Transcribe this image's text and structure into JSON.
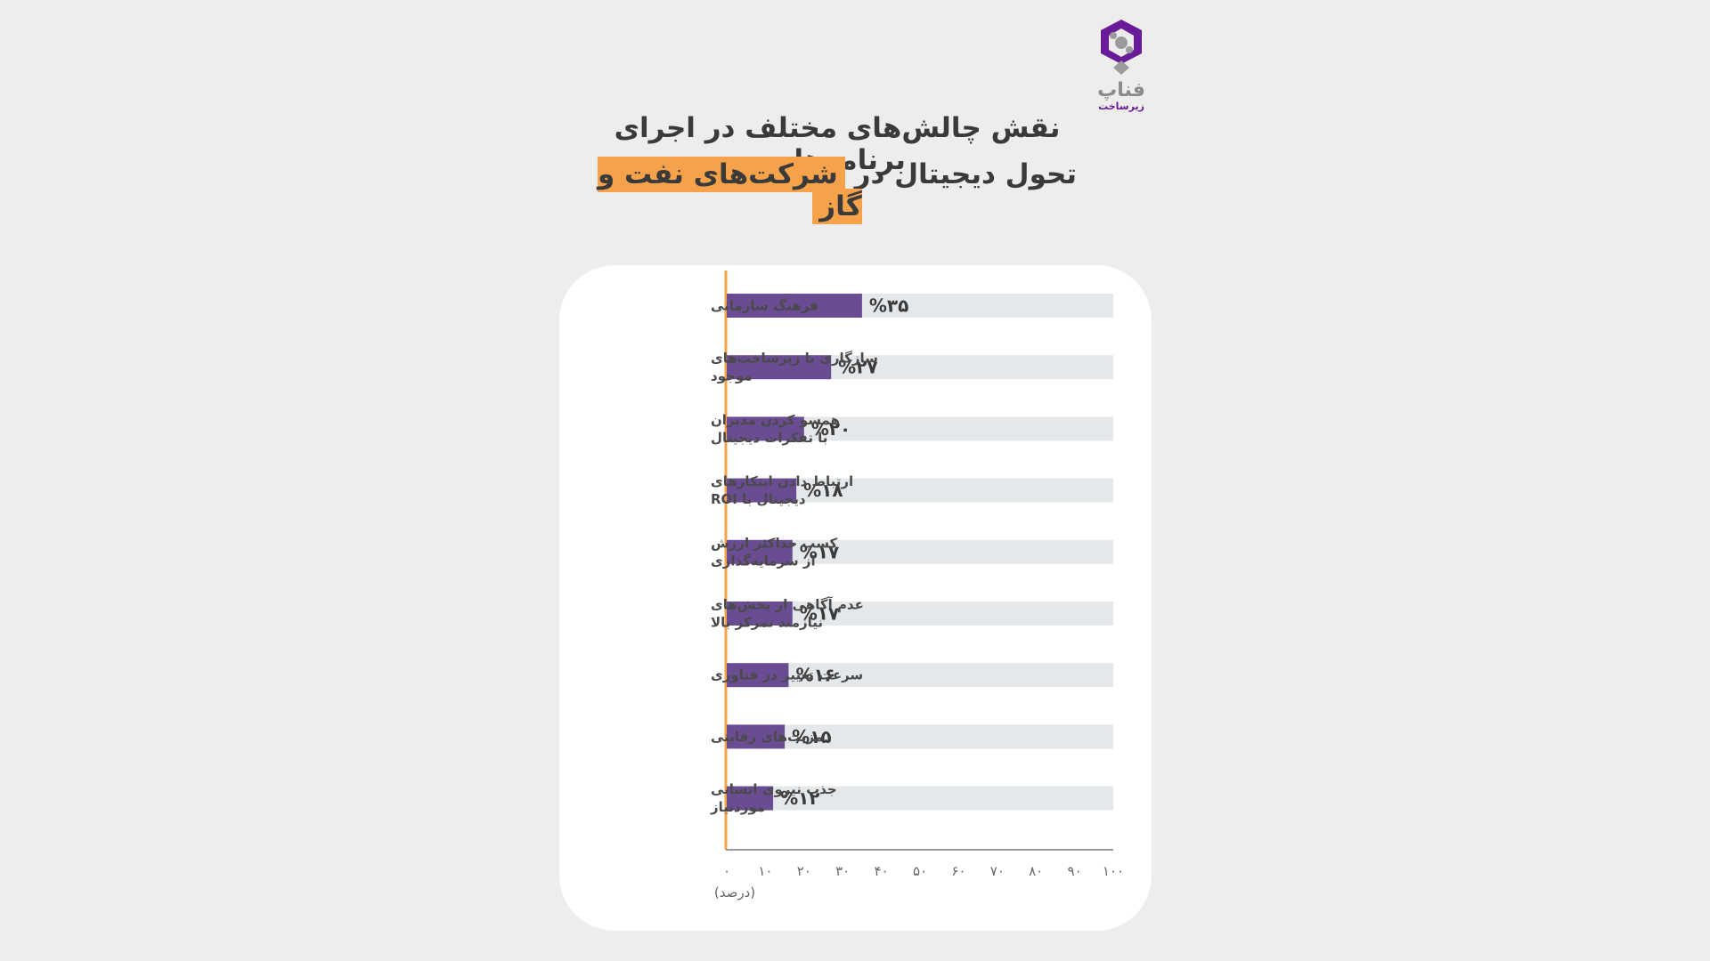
{
  "logo": {
    "main_text": "فناپ",
    "sub_text": "زیرساخت"
  },
  "title": {
    "line1": "نقش چالش‌های مختلف در اجرای برنامه‌های",
    "line2_before": "تحول دیجیتال در",
    "line2_highlight": "شرکت‌های نفت و گاز"
  },
  "colors": {
    "bar": "#6a4c93",
    "track": "#e5e8ea",
    "axis": "#f5a24b",
    "highlight": "#f5a24b",
    "card": "#ffffff",
    "background": "#ededec"
  },
  "chart_data": {
    "type": "bar",
    "orientation": "horizontal",
    "categories": [
      [
        "فرهنگ سازمانی"
      ],
      [
        "سازگاری با زیرساخت‌های",
        "موجود"
      ],
      [
        "همسو کردن مدیران",
        "با تفکرات دیجیتال"
      ],
      [
        "ارتباط دادن ابتکارهای",
        "دیجیتال با ROI"
      ],
      [
        "کسب حداکثر ارزش",
        "از سرمایه‌گذاری"
      ],
      [
        "عدم آگاهی از بخش‌های",
        "نیازمند تمرکز بالا"
      ],
      [
        "سرعت تغییر در فناوری"
      ],
      [
        "مزیت‌های رقابتی"
      ],
      [
        "جذب نیروی انسانی",
        "موردنیاز"
      ]
    ],
    "values": [
      35,
      27,
      20,
      18,
      17,
      17,
      16,
      15,
      12
    ],
    "value_labels": [
      "%۳۵",
      "%۲۷",
      "%۲۰",
      "%۱۸",
      "%۱۷",
      "%۱۷",
      "%۱۶",
      "%۱۵",
      "%۱۲"
    ],
    "xlim": [
      0,
      100
    ],
    "xticks": [
      0,
      10,
      20,
      30,
      40,
      50,
      60,
      70,
      80,
      90,
      100
    ],
    "xtick_labels": [
      "۰",
      "۱۰",
      "۲۰",
      "۳۰",
      "۴۰",
      "۵۰",
      "۶۰",
      "۷۰",
      "۸۰",
      "۹۰",
      "۱۰۰"
    ],
    "xlabel": "(درصد)",
    "grid": false,
    "legend": "none"
  }
}
